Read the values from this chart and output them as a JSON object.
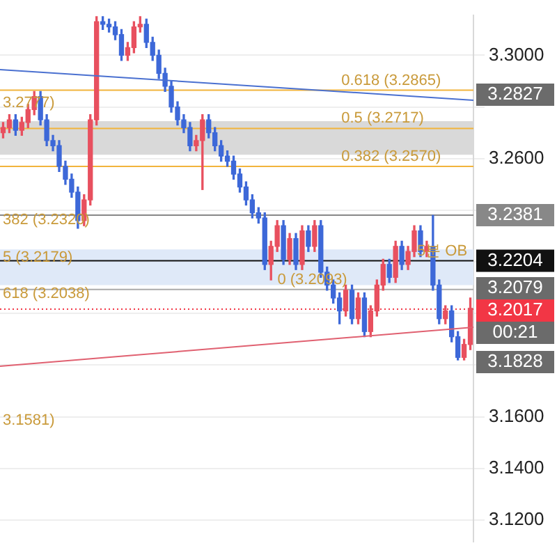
{
  "chart_data": {
    "type": "candlestick",
    "categories": [
      null,
      null,
      null,
      null,
      null,
      null,
      null,
      null,
      null,
      null,
      null,
      null,
      null,
      null,
      null,
      null,
      null,
      null,
      null,
      null,
      null,
      null,
      null,
      null,
      null,
      null,
      null,
      null,
      null,
      null,
      null,
      null,
      null,
      null,
      null,
      null,
      null,
      null,
      null,
      null,
      null,
      null,
      null,
      null,
      null,
      null,
      null,
      null,
      null,
      null,
      null,
      null,
      null,
      null,
      null,
      null,
      null,
      null,
      null,
      null,
      null,
      null,
      null,
      null,
      null,
      null,
      null,
      null,
      null,
      null,
      null,
      null,
      null,
      null,
      null,
      null
    ],
    "ohlc": [
      [
        3.27,
        3.274,
        3.268,
        3.272
      ],
      [
        3.272,
        3.277,
        3.27,
        3.275
      ],
      [
        3.275,
        3.277,
        3.269,
        3.271
      ],
      [
        3.271,
        3.276,
        3.269,
        3.274
      ],
      [
        3.274,
        3.281,
        3.272,
        3.279
      ],
      [
        3.279,
        3.286,
        3.277,
        3.284
      ],
      [
        3.284,
        3.286,
        3.273,
        3.275
      ],
      [
        3.275,
        3.277,
        3.265,
        3.267
      ],
      [
        3.267,
        3.269,
        3.263,
        3.265
      ],
      [
        3.265,
        3.267,
        3.255,
        3.257
      ],
      [
        3.257,
        3.259,
        3.25,
        3.252
      ],
      [
        3.252,
        3.254,
        3.245,
        3.247
      ],
      [
        3.247,
        3.249,
        3.233,
        3.236
      ],
      [
        3.236,
        3.246,
        3.234,
        3.244
      ],
      [
        3.244,
        3.277,
        3.242,
        3.275
      ],
      [
        3.275,
        3.315,
        3.273,
        3.313
      ],
      [
        3.313,
        3.315,
        3.31,
        3.312
      ],
      [
        3.312,
        3.314,
        3.309,
        3.311
      ],
      [
        3.311,
        3.313,
        3.306,
        3.308
      ],
      [
        3.308,
        3.31,
        3.298,
        3.3
      ],
      [
        3.3,
        3.305,
        3.298,
        3.303
      ],
      [
        3.303,
        3.313,
        3.301,
        3.311
      ],
      [
        3.311,
        3.315,
        3.309,
        3.312
      ],
      [
        3.312,
        3.314,
        3.303,
        3.305
      ],
      [
        3.305,
        3.307,
        3.298,
        3.3
      ],
      [
        3.3,
        3.302,
        3.291,
        3.293
      ],
      [
        3.293,
        3.295,
        3.286,
        3.288
      ],
      [
        3.288,
        3.29,
        3.278,
        3.28
      ],
      [
        3.28,
        3.282,
        3.273,
        3.275
      ],
      [
        3.275,
        3.277,
        3.27,
        3.272
      ],
      [
        3.272,
        3.274,
        3.263,
        3.265
      ],
      [
        3.265,
        3.269,
        3.263,
        3.267
      ],
      [
        3.267,
        3.277,
        3.248,
        3.275
      ],
      [
        3.275,
        3.277,
        3.268,
        3.27
      ],
      [
        3.27,
        3.272,
        3.263,
        3.265
      ],
      [
        3.265,
        3.267,
        3.259,
        3.261
      ],
      [
        3.261,
        3.263,
        3.257,
        3.259
      ],
      [
        3.259,
        3.261,
        3.252,
        3.254
      ],
      [
        3.254,
        3.256,
        3.247,
        3.249
      ],
      [
        3.249,
        3.251,
        3.242,
        3.244
      ],
      [
        3.244,
        3.246,
        3.237,
        3.239
      ],
      [
        3.239,
        3.241,
        3.235,
        3.237
      ],
      [
        3.237,
        3.239,
        3.217,
        3.219
      ],
      [
        3.219,
        3.228,
        3.213,
        3.226
      ],
      [
        3.226,
        3.236,
        3.224,
        3.234
      ],
      [
        3.234,
        3.236,
        3.219,
        3.221
      ],
      [
        3.221,
        3.231,
        3.219,
        3.229
      ],
      [
        3.229,
        3.231,
        3.217,
        3.219
      ],
      [
        3.219,
        3.234,
        3.217,
        3.232
      ],
      [
        3.232,
        3.234,
        3.224,
        3.226
      ],
      [
        3.226,
        3.236,
        3.224,
        3.234
      ],
      [
        3.234,
        3.236,
        3.214,
        3.216
      ],
      [
        3.216,
        3.218,
        3.209,
        3.211
      ],
      [
        3.211,
        3.213,
        3.204,
        3.206
      ],
      [
        3.206,
        3.208,
        3.196,
        3.201
      ],
      [
        3.201,
        3.211,
        3.199,
        3.209
      ],
      [
        3.209,
        3.211,
        3.196,
        3.198
      ],
      [
        3.198,
        3.208,
        3.196,
        3.206
      ],
      [
        3.206,
        3.208,
        3.191,
        3.193
      ],
      [
        3.193,
        3.203,
        3.191,
        3.201
      ],
      [
        3.201,
        3.213,
        3.199,
        3.211
      ],
      [
        3.211,
        3.221,
        3.209,
        3.219
      ],
      [
        3.219,
        3.221,
        3.212,
        3.214
      ],
      [
        3.214,
        3.228,
        3.212,
        3.226
      ],
      [
        3.226,
        3.228,
        3.217,
        3.219
      ],
      [
        3.219,
        3.226,
        3.217,
        3.224
      ],
      [
        3.224,
        3.234,
        3.222,
        3.232
      ],
      [
        3.232,
        3.234,
        3.222,
        3.224
      ],
      [
        3.224,
        3.228,
        3.222,
        3.226
      ],
      [
        3.226,
        3.238,
        3.209,
        3.211
      ],
      [
        3.211,
        3.213,
        3.196,
        3.198
      ],
      [
        3.198,
        3.203,
        3.196,
        3.201
      ],
      [
        3.201,
        3.203,
        3.189,
        3.191
      ],
      [
        3.191,
        3.193,
        3.182,
        3.183
      ],
      [
        3.183,
        3.19,
        3.182,
        3.188
      ],
      [
        3.188,
        3.206,
        3.186,
        3.202
      ]
    ],
    "colors": [
      "#e8505f",
      "#e8505f",
      "#3d68d8",
      "#e8505f",
      "#e8505f",
      "#e8505f",
      "#3d68d8",
      "#3d68d8",
      "#3d68d8",
      "#3d68d8",
      "#3d68d8",
      "#3d68d8",
      "#3d68d8",
      "#e8505f",
      "#e8505f",
      "#e8505f",
      "#3d68d8",
      "#3d68d8",
      "#3d68d8",
      "#3d68d8",
      "#e8505f",
      "#e8505f",
      "#e8505f",
      "#3d68d8",
      "#3d68d8",
      "#3d68d8",
      "#3d68d8",
      "#3d68d8",
      "#3d68d8",
      "#3d68d8",
      "#3d68d8",
      "#e8505f",
      "#e8505f",
      "#3d68d8",
      "#3d68d8",
      "#3d68d8",
      "#3d68d8",
      "#3d68d8",
      "#3d68d8",
      "#3d68d8",
      "#3d68d8",
      "#3d68d8",
      "#3d68d8",
      "#e8505f",
      "#e8505f",
      "#3d68d8",
      "#e8505f",
      "#3d68d8",
      "#e8505f",
      "#3d68d8",
      "#e8505f",
      "#3d68d8",
      "#3d68d8",
      "#3d68d8",
      "#3d68d8",
      "#e8505f",
      "#3d68d8",
      "#e8505f",
      "#3d68d8",
      "#e8505f",
      "#e8505f",
      "#e8505f",
      "#3d68d8",
      "#e8505f",
      "#3d68d8",
      "#e8505f",
      "#e8505f",
      "#3d68d8",
      "#e8505f",
      "#3d68d8",
      "#3d68d8",
      "#e8505f",
      "#3d68d8",
      "#3d68d8",
      "#e8505f",
      "#e8505f"
    ],
    "ylim": [
      3.1115,
      3.3156
    ],
    "yticks": [
      {
        "value": 3.12,
        "label": "3.1200"
      },
      {
        "value": 3.14,
        "label": "3.1400"
      },
      {
        "value": 3.16,
        "label": "3.1600"
      },
      {
        "value": 3.18,
        "label": null
      },
      {
        "value": 3.2,
        "label": null
      },
      {
        "value": 3.22,
        "label": null
      },
      {
        "value": 3.24,
        "label": null
      },
      {
        "value": 3.26,
        "label": "3.2600"
      },
      {
        "value": 3.28,
        "label": null
      },
      {
        "value": 3.3,
        "label": "3.3000"
      }
    ],
    "tick_labels": "y",
    "grid": "y",
    "bands": [
      {
        "axis": "y",
        "from": 3.2615,
        "to": 3.2745,
        "color": "#d9d9d9"
      },
      {
        "axis": "y",
        "from": 3.211,
        "to": 3.2248,
        "color": "#dfe9f8"
      }
    ],
    "ref_lines": [
      {
        "axis": "y",
        "value": 3.2865,
        "color": "#f2b43c"
      },
      {
        "axis": "y",
        "value": 3.2717,
        "color": "#f2b43c"
      },
      {
        "axis": "y",
        "value": 3.257,
        "color": "#f2b43c"
      },
      {
        "axis": "y",
        "value": 3.2381,
        "label": "3.2381",
        "color": "#888888"
      },
      {
        "axis": "y",
        "value": 3.2204,
        "label": "3.2204",
        "color": "#111111"
      },
      {
        "axis": "y",
        "value": 3.2093,
        "color": "#aaaaaa"
      },
      {
        "axis": "y",
        "value": 3.2017,
        "label": "3.2017",
        "color": "#f23645",
        "line_style": "dotted"
      }
    ],
    "annotations": [
      {
        "text": "0.618 (3.2865)",
        "y": 3.2865
      },
      {
        "text": "0.5 (3.2717)",
        "y": 3.2717
      },
      {
        "text": "0.382 (3.2570)",
        "y": 3.257
      },
      {
        "text": "3.2777)",
        "y": 3.2777
      },
      "382 (3.2320)",
      {
        "text": "5 (3.2179)",
        "y": 3.2179
      },
      {
        "text": "618 (3.2038)",
        "y": 3.2038
      },
      "3.1581)",
      {
        "text": "0 (3.2093)",
        "y": 3.2093
      },
      {
        "text": "5분 OB",
        "y": 3.2204
      },
      "3.2827",
      "3.2079",
      "00:21",
      "3.1828"
    ]
  }
}
